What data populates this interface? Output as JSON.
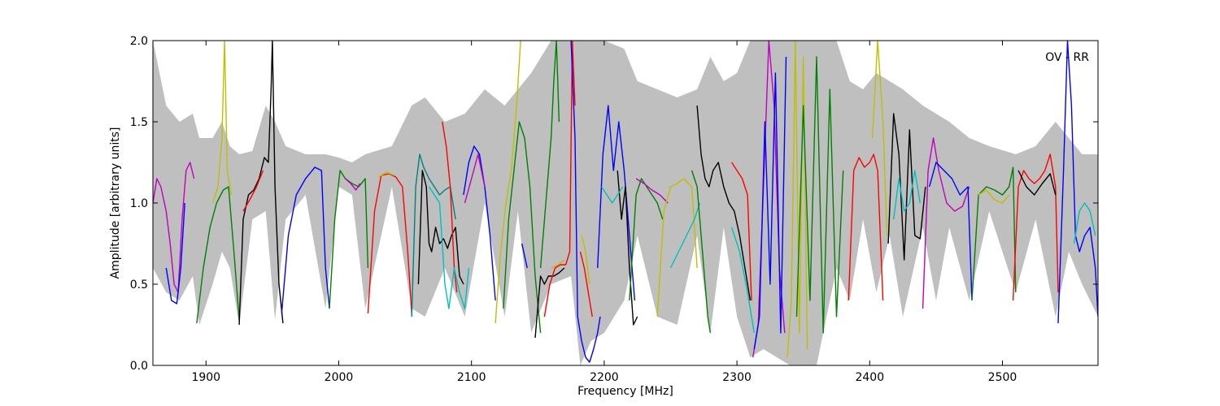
{
  "chart_data": {
    "type": "line",
    "title": "",
    "annotation": "OV - RR",
    "xlabel": "Frequency [MHz]",
    "ylabel": "Amplitude [arbitrary units]",
    "xlim": [
      1860,
      2572
    ],
    "ylim": [
      0.0,
      2.0
    ],
    "x_ticks": [
      1900,
      2000,
      2100,
      2200,
      2300,
      2400,
      2500
    ],
    "y_ticks": [
      0.0,
      0.5,
      1.0,
      1.5,
      2.0
    ],
    "x_tick_labels": [
      "1900",
      "2000",
      "2100",
      "2200",
      "2300",
      "2400",
      "2500"
    ],
    "y_tick_labels": [
      "0.0",
      "0.5",
      "1.0",
      "1.5",
      "2.0"
    ],
    "grid": false,
    "legend": "none",
    "envelope": {
      "color": "#bfbfbf",
      "x": [
        1860,
        1870,
        1880,
        1890,
        1895,
        1905,
        1912,
        1918,
        1925,
        1935,
        1945,
        1952,
        1960,
        1975,
        1990,
        2000,
        2010,
        2020,
        2040,
        2055,
        2065,
        2080,
        2095,
        2110,
        2125,
        2135,
        2145,
        2160,
        2175,
        2182,
        2190,
        2200,
        2215,
        2225,
        2240,
        2255,
        2270,
        2280,
        2290,
        2300,
        2310,
        2320,
        2330,
        2340,
        2350,
        2360,
        2375,
        2385,
        2395,
        2405,
        2415,
        2425,
        2440,
        2450,
        2460,
        2475,
        2490,
        2510,
        2525,
        2540,
        2550,
        2560,
        2572
      ],
      "upper": [
        2.0,
        1.6,
        1.5,
        1.55,
        1.4,
        1.4,
        1.5,
        1.35,
        1.3,
        1.32,
        1.6,
        1.5,
        1.35,
        1.3,
        1.3,
        1.28,
        1.25,
        1.3,
        1.35,
        1.6,
        1.65,
        1.5,
        1.55,
        1.7,
        1.6,
        1.7,
        1.8,
        2.0,
        2.0,
        2.0,
        2.0,
        2.0,
        1.95,
        1.75,
        1.7,
        1.65,
        1.7,
        1.9,
        1.75,
        1.8,
        2.0,
        2.0,
        2.0,
        2.0,
        2.0,
        2.0,
        2.0,
        1.75,
        1.7,
        1.8,
        1.75,
        1.7,
        1.6,
        1.55,
        1.5,
        1.4,
        1.35,
        1.3,
        1.35,
        1.5,
        1.4,
        1.3,
        1.3
      ],
      "lower": [
        0.6,
        0.45,
        0.4,
        0.55,
        0.25,
        0.5,
        0.7,
        0.6,
        0.25,
        0.9,
        0.95,
        0.28,
        0.9,
        1.05,
        0.35,
        1.1,
        1.05,
        0.35,
        1.1,
        0.35,
        0.3,
        0.6,
        0.3,
        1.0,
        0.3,
        0.95,
        0.2,
        0.5,
        0.55,
        0.0,
        0.15,
        0.2,
        0.4,
        0.8,
        0.3,
        0.25,
        0.8,
        0.2,
        0.85,
        0.3,
        0.05,
        0.1,
        0.05,
        0.0,
        0.0,
        0.0,
        0.6,
        0.4,
        0.9,
        0.45,
        0.8,
        0.3,
        0.85,
        0.4,
        0.85,
        0.4,
        0.95,
        0.45,
        0.9,
        0.3,
        0.7,
        0.5,
        0.3
      ]
    },
    "series": [
      {
        "color": "#c000c0",
        "x": [
          1860,
          1863,
          1866,
          1870,
          1873,
          1876,
          1879,
          1882,
          1885,
          1888,
          1891
        ],
        "y": [
          1.0,
          1.15,
          1.1,
          0.95,
          0.75,
          0.5,
          0.45,
          0.9,
          1.2,
          1.25,
          1.15
        ]
      },
      {
        "color": "#0000ff",
        "x": [
          1870,
          1874,
          1878,
          1881,
          1884
        ],
        "y": [
          0.6,
          0.4,
          0.38,
          0.6,
          1.0
        ]
      },
      {
        "color": "#008000",
        "x": [
          1893,
          1898,
          1903,
          1908,
          1913,
          1917,
          1921,
          1925
        ],
        "y": [
          0.26,
          0.6,
          0.85,
          1.0,
          1.08,
          1.1,
          0.7,
          0.28
        ]
      },
      {
        "color": "#bfbf00",
        "x": [
          1905,
          1909,
          1912,
          1914,
          1916,
          1919
        ],
        "y": [
          1.0,
          1.1,
          1.4,
          2.0,
          1.2,
          1.05
        ]
      },
      {
        "color": "#000000",
        "x": [
          1925,
          1928,
          1932,
          1936,
          1940,
          1944,
          1947,
          1949,
          1950,
          1952,
          1955,
          1958
        ],
        "y": [
          0.25,
          0.9,
          1.05,
          1.08,
          1.15,
          1.28,
          1.25,
          1.7,
          2.0,
          1.1,
          0.5,
          0.26
        ]
      },
      {
        "color": "#ff0000",
        "x": [
          1928,
          1933,
          1938,
          1943
        ],
        "y": [
          0.95,
          1.02,
          1.1,
          1.2
        ]
      },
      {
        "color": "#0000ff",
        "x": [
          1957,
          1962,
          1968,
          1975,
          1982,
          1987,
          1990,
          1993
        ],
        "y": [
          0.32,
          0.8,
          1.05,
          1.15,
          1.22,
          1.2,
          0.6,
          0.35
        ]
      },
      {
        "color": "#008000",
        "x": [
          1993,
          1997,
          2001,
          2005,
          2010,
          2015,
          2020,
          2022
        ],
        "y": [
          0.36,
          0.9,
          1.2,
          1.15,
          1.12,
          1.1,
          1.15,
          0.6
        ]
      },
      {
        "color": "#c000c0",
        "x": [
          2005,
          2009,
          2013,
          2016
        ],
        "y": [
          1.15,
          1.12,
          1.08,
          1.12
        ]
      },
      {
        "color": "#ff0000",
        "x": [
          2022,
          2027,
          2032,
          2038,
          2043,
          2048,
          2052,
          2055
        ],
        "y": [
          0.32,
          0.95,
          1.17,
          1.18,
          1.16,
          1.1,
          0.7,
          0.32
        ]
      },
      {
        "color": "#bfbf00",
        "x": [
          2030,
          2036,
          2042
        ],
        "y": [
          1.16,
          1.19,
          1.17
        ]
      },
      {
        "color": "#008080",
        "x": [
          2055,
          2058,
          2061,
          2064,
          2068,
          2072,
          2076,
          2080,
          2084,
          2088
        ],
        "y": [
          0.3,
          1.1,
          1.3,
          1.22,
          1.15,
          1.1,
          1.05,
          1.08,
          1.1,
          0.9
        ]
      },
      {
        "color": "#000000",
        "x": [
          2060,
          2063,
          2066,
          2068,
          2070,
          2073,
          2076,
          2079,
          2082,
          2085,
          2088,
          2091,
          2094
        ],
        "y": [
          0.5,
          1.2,
          1.1,
          0.75,
          0.7,
          0.85,
          0.75,
          0.78,
          0.72,
          0.8,
          0.85,
          0.55,
          0.5
        ]
      },
      {
        "color": "#ff0000",
        "x": [
          2078,
          2081,
          2084,
          2087,
          2089
        ],
        "y": [
          1.5,
          1.35,
          1.1,
          0.6,
          0.45
        ]
      },
      {
        "color": "#00bfbf",
        "x": [
          2068,
          2072,
          2076,
          2080,
          2083,
          2087,
          2091,
          2095,
          2098
        ],
        "y": [
          1.1,
          1.05,
          1.0,
          0.5,
          0.35,
          0.6,
          0.45,
          0.35,
          0.6
        ]
      },
      {
        "color": "#0000ff",
        "x": [
          2094,
          2098,
          2102,
          2106,
          2110,
          2114,
          2118
        ],
        "y": [
          1.05,
          1.25,
          1.35,
          1.3,
          1.1,
          0.8,
          0.4
        ]
      },
      {
        "color": "#c000c0",
        "x": [
          2095,
          2100,
          2105,
          2110
        ],
        "y": [
          1.0,
          1.15,
          1.3,
          1.1
        ]
      },
      {
        "color": "#bfbf00",
        "x": [
          2118,
          2122,
          2126,
          2130,
          2134,
          2137
        ],
        "y": [
          0.26,
          0.7,
          1.0,
          1.2,
          1.6,
          2.0
        ]
      },
      {
        "color": "#008000",
        "x": [
          2124,
          2128,
          2132,
          2136,
          2140,
          2144,
          2148,
          2152
        ],
        "y": [
          0.35,
          0.9,
          1.2,
          1.5,
          1.4,
          1.1,
          0.55,
          0.2
        ]
      },
      {
        "color": "#0000ff",
        "x": [
          2138,
          2142
        ],
        "y": [
          0.75,
          0.6
        ]
      },
      {
        "color": "#000000",
        "x": [
          2148,
          2152,
          2155,
          2158,
          2162,
          2166,
          2170
        ],
        "y": [
          0.17,
          0.55,
          0.5,
          0.55,
          0.55,
          0.57,
          0.6
        ]
      },
      {
        "color": "#008000",
        "x": [
          2152,
          2156,
          2160,
          2162,
          2164,
          2166
        ],
        "y": [
          0.6,
          1.0,
          1.4,
          1.75,
          2.0,
          1.5
        ]
      },
      {
        "color": "#ff0000",
        "x": [
          2155,
          2159,
          2163,
          2167,
          2171,
          2174,
          2176,
          2178
        ],
        "y": [
          0.3,
          0.5,
          0.6,
          0.62,
          0.62,
          0.7,
          2.0,
          1.6
        ]
      },
      {
        "color": "#bfbf00",
        "x": [
          2160,
          2165,
          2170
        ],
        "y": [
          0.6,
          0.62,
          0.65
        ]
      },
      {
        "color": "#0000ff",
        "x": [
          2175,
          2178,
          2180,
          2183,
          2186,
          2189,
          2192,
          2195,
          2197
        ],
        "y": [
          2.0,
          1.4,
          0.3,
          0.15,
          0.05,
          0.02,
          0.1,
          0.2,
          0.3
        ]
      },
      {
        "color": "#ff0000",
        "x": [
          2182,
          2185,
          2188,
          2191
        ],
        "y": [
          0.7,
          0.6,
          0.45,
          0.3
        ]
      },
      {
        "color": "#bfbf00",
        "x": [
          2183,
          2186,
          2189
        ],
        "y": [
          0.8,
          0.7,
          0.5
        ]
      },
      {
        "color": "#0000ff",
        "x": [
          2195,
          2199,
          2203,
          2207,
          2211,
          2215,
          2219,
          2223
        ],
        "y": [
          0.6,
          1.3,
          1.6,
          1.2,
          1.5,
          1.2,
          0.8,
          0.4
        ]
      },
      {
        "color": "#000000",
        "x": [
          2210,
          2213,
          2216,
          2219,
          2222,
          2225
        ],
        "y": [
          1.2,
          0.9,
          1.1,
          0.6,
          0.25,
          0.3
        ]
      },
      {
        "color": "#00bfbf",
        "x": [
          2198,
          2202,
          2206,
          2210,
          2214
        ],
        "y": [
          1.1,
          1.05,
          1.0,
          1.05,
          1.1
        ]
      },
      {
        "color": "#008000",
        "x": [
          2219,
          2224,
          2228,
          2232,
          2236,
          2240,
          2244
        ],
        "y": [
          0.4,
          1.05,
          1.15,
          1.1,
          1.05,
          1.0,
          0.9
        ]
      },
      {
        "color": "#c000c0",
        "x": [
          2224,
          2230,
          2236,
          2242,
          2248
        ],
        "y": [
          1.15,
          1.12,
          1.08,
          1.05,
          1.0
        ]
      },
      {
        "color": "#bfbf00",
        "x": [
          2240,
          2245,
          2250,
          2255,
          2260,
          2266,
          2270
        ],
        "y": [
          0.3,
          0.95,
          1.1,
          1.12,
          1.15,
          1.1,
          0.6
        ]
      },
      {
        "color": "#00bfbf",
        "x": [
          2250,
          2256,
          2262,
          2268,
          2272
        ],
        "y": [
          0.6,
          0.7,
          0.8,
          0.9,
          1.0
        ]
      },
      {
        "color": "#008000",
        "x": [
          2266,
          2270,
          2274,
          2278,
          2280
        ],
        "y": [
          1.2,
          1.1,
          0.7,
          0.3,
          0.2
        ]
      },
      {
        "color": "#000000",
        "x": [
          2270,
          2273,
          2276,
          2279,
          2282,
          2286,
          2290,
          2294,
          2298,
          2302,
          2306,
          2310
        ],
        "y": [
          1.6,
          1.3,
          1.15,
          1.1,
          1.2,
          1.25,
          1.1,
          1.0,
          0.95,
          0.8,
          0.6,
          0.4
        ]
      },
      {
        "color": "#ff0000",
        "x": [
          2296,
          2300,
          2304,
          2308,
          2311
        ],
        "y": [
          1.25,
          1.2,
          1.15,
          1.05,
          0.4
        ]
      },
      {
        "color": "#00bfbf",
        "x": [
          2296,
          2302,
          2308,
          2313
        ],
        "y": [
          0.85,
          0.7,
          0.45,
          0.2
        ]
      },
      {
        "color": "#c000c0",
        "x": [
          2312,
          2316,
          2320,
          2324,
          2328,
          2332,
          2336
        ],
        "y": [
          0.05,
          0.25,
          1.1,
          2.0,
          1.6,
          0.6,
          0.2
        ]
      },
      {
        "color": "#0000ff",
        "x": [
          2313,
          2317,
          2321,
          2325,
          2329,
          2333,
          2337
        ],
        "y": [
          0.1,
          0.3,
          1.5,
          0.5,
          1.8,
          0.2,
          1.9
        ]
      },
      {
        "color": "#bfbf00",
        "x": [
          2338,
          2341,
          2344,
          2347,
          2350,
          2353
        ],
        "y": [
          0.05,
          0.4,
          2.0,
          0.2,
          1.9,
          0.1
        ]
      },
      {
        "color": "#008000",
        "x": [
          2345,
          2350,
          2355,
          2360,
          2365,
          2370,
          2375,
          2380
        ],
        "y": [
          0.3,
          1.6,
          0.4,
          1.9,
          0.2,
          1.7,
          0.3,
          1.2
        ]
      },
      {
        "color": "#ff0000",
        "x": [
          2384,
          2388,
          2392,
          2396,
          2400,
          2403,
          2406,
          2410
        ],
        "y": [
          0.4,
          1.2,
          1.28,
          1.22,
          1.25,
          1.3,
          1.2,
          0.4
        ]
      },
      {
        "color": "#bfbf00",
        "x": [
          2402,
          2406,
          2410,
          2413
        ],
        "y": [
          1.4,
          2.0,
          1.5,
          0.8
        ]
      },
      {
        "color": "#000000",
        "x": [
          2414,
          2418,
          2422,
          2426,
          2430,
          2434,
          2438,
          2442
        ],
        "y": [
          0.75,
          1.55,
          1.3,
          0.65,
          1.45,
          0.8,
          0.78,
          1.1
        ]
      },
      {
        "color": "#00bfbf",
        "x": [
          2418,
          2422,
          2426,
          2430,
          2434,
          2438
        ],
        "y": [
          0.9,
          1.15,
          0.95,
          1.0,
          1.2,
          1.0
        ]
      },
      {
        "color": "#c000c0",
        "x": [
          2440,
          2444,
          2448,
          2452,
          2458,
          2464,
          2470,
          2475
        ],
        "y": [
          0.35,
          1.2,
          1.4,
          1.2,
          1.0,
          0.95,
          0.98,
          1.1
        ]
      },
      {
        "color": "#0000ff",
        "x": [
          2445,
          2450,
          2456,
          2462,
          2468,
          2474,
          2477
        ],
        "y": [
          1.1,
          1.25,
          1.2,
          1.15,
          1.05,
          1.1,
          0.4
        ]
      },
      {
        "color": "#008000",
        "x": [
          2477,
          2482,
          2488,
          2494,
          2500,
          2505,
          2508,
          2510
        ],
        "y": [
          0.4,
          1.05,
          1.1,
          1.08,
          1.05,
          1.1,
          1.22,
          0.45
        ]
      },
      {
        "color": "#bfbf00",
        "x": [
          2482,
          2488,
          2494,
          2500,
          2505
        ],
        "y": [
          1.05,
          1.08,
          1.02,
          1.0,
          1.05
        ]
      },
      {
        "color": "#ff0000",
        "x": [
          2508,
          2512,
          2516,
          2520,
          2524,
          2528,
          2532,
          2536,
          2540,
          2542
        ],
        "y": [
          0.4,
          1.1,
          1.2,
          1.15,
          1.12,
          1.15,
          1.2,
          1.3,
          1.1,
          0.45
        ]
      },
      {
        "color": "#000000",
        "x": [
          2512,
          2518,
          2524,
          2530,
          2536,
          2540
        ],
        "y": [
          1.2,
          1.1,
          1.05,
          1.12,
          1.18,
          1.05
        ]
      },
      {
        "color": "#0000ff",
        "x": [
          2542,
          2546,
          2549,
          2552,
          2555,
          2558,
          2562,
          2566,
          2570,
          2572
        ],
        "y": [
          0.26,
          1.2,
          2.0,
          1.6,
          0.8,
          0.7,
          0.8,
          0.85,
          0.6,
          0.3
        ]
      },
      {
        "color": "#00bfbf",
        "x": [
          2554,
          2558,
          2562,
          2566,
          2570
        ],
        "y": [
          0.75,
          0.95,
          1.0,
          0.95,
          0.8
        ]
      }
    ]
  }
}
